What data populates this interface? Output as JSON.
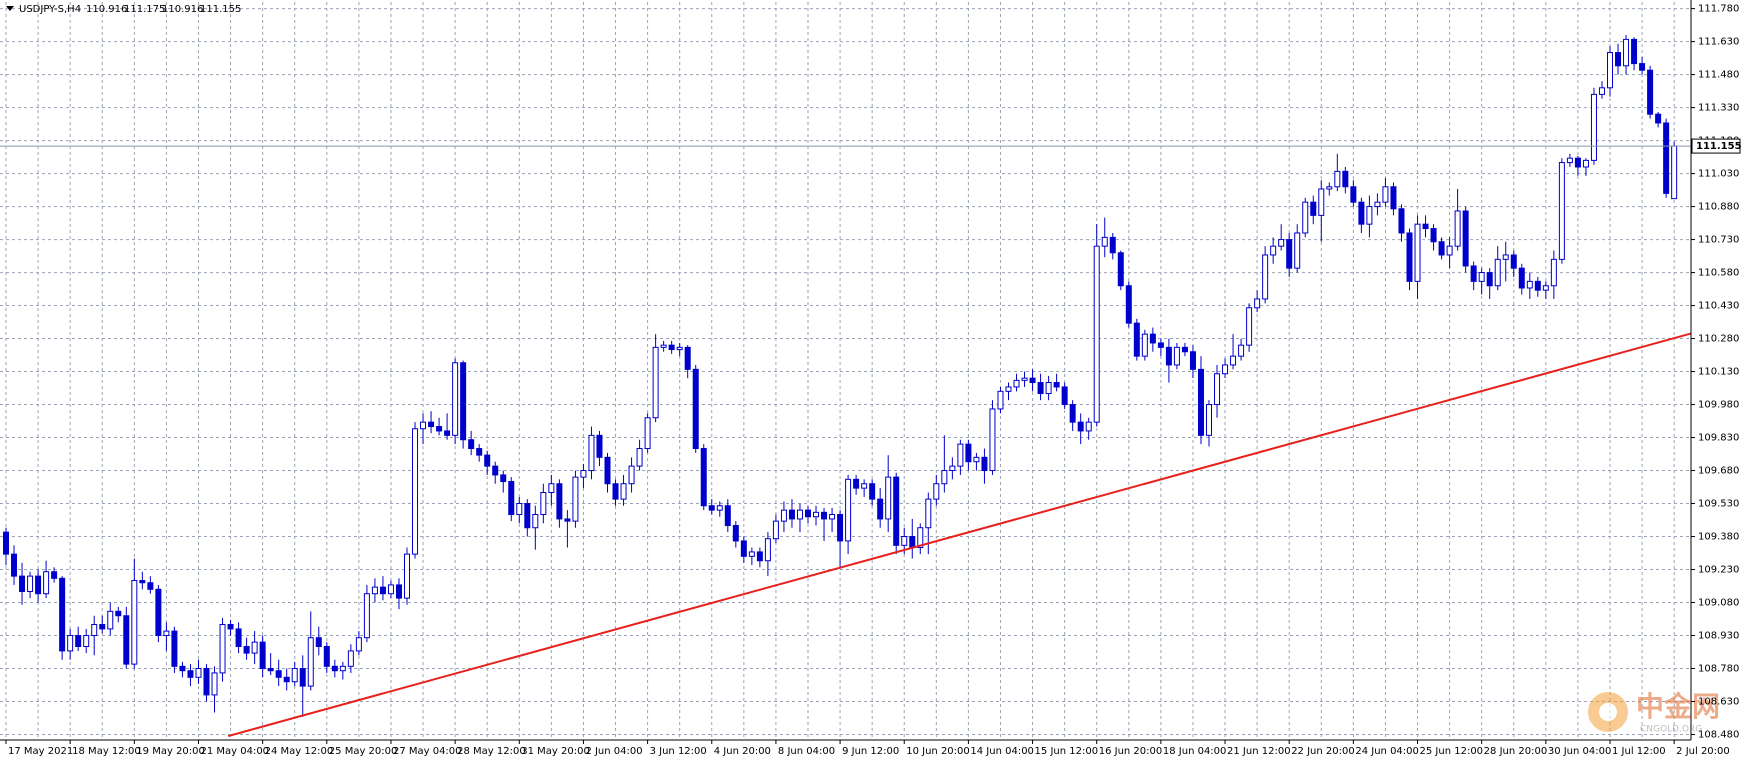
{
  "chart_data": {
    "type": "candlestick",
    "symbol": "USDJPY-S,H4",
    "x": [
      "17 May 2021",
      null,
      null,
      null,
      null,
      null,
      null,
      null,
      "18 May 12:00",
      null,
      null,
      null,
      null,
      null,
      null,
      null,
      "19 May 20:00",
      null,
      null,
      null,
      null,
      null,
      null,
      null,
      "21 May 04:00",
      null,
      null,
      null,
      null,
      null,
      null,
      null,
      "24 May 12:00",
      null,
      null,
      null,
      null,
      null,
      null,
      null,
      "25 May 20:00",
      null,
      null,
      null,
      null,
      null,
      null,
      null,
      "27 May 04:00",
      null,
      null,
      null,
      null,
      null,
      null,
      null,
      "28 May 12:00",
      null,
      null,
      null,
      null,
      null,
      null,
      null,
      "31 May 20:00",
      null,
      null,
      null,
      null,
      null,
      null,
      null,
      "2 Jun 04:00",
      null,
      null,
      null,
      null,
      null,
      null,
      null,
      "3 Jun 12:00",
      null,
      null,
      null,
      null,
      null,
      null,
      null,
      "4 Jun 20:00",
      null,
      null,
      null,
      null,
      null,
      null,
      null,
      "8 Jun 04:00",
      null,
      null,
      null,
      null,
      null,
      null,
      null,
      "9 Jun 12:00",
      null,
      null,
      null,
      null,
      null,
      null,
      null,
      "10 Jun 20:00",
      null,
      null,
      null,
      null,
      null,
      null,
      null,
      "14 Jun 04:00",
      null,
      null,
      null,
      null,
      null,
      null,
      null,
      "15 Jun 12:00",
      null,
      null,
      null,
      null,
      null,
      null,
      null,
      "16 Jun 20:00",
      null,
      null,
      null,
      null,
      null,
      null,
      null,
      "18 Jun 04:00",
      null,
      null,
      null,
      null,
      null,
      null,
      null,
      "21 Jun 12:00",
      null,
      null,
      null,
      null,
      null,
      null,
      null,
      "22 Jun 20:00",
      null,
      null,
      null,
      null,
      null,
      null,
      null,
      "24 Jun 04:00",
      null,
      null,
      null,
      null,
      null,
      null,
      null,
      "25 Jun 12:00",
      null,
      null,
      null,
      null,
      null,
      null,
      null,
      "28 Jun 20:00",
      null,
      null,
      null,
      null,
      null,
      null,
      null,
      "30 Jun 04:00",
      null,
      null,
      null,
      null,
      null,
      null,
      null,
      "1 Jul 12:00",
      null,
      null,
      null,
      null,
      null,
      null,
      null,
      "2 Jul 20:00"
    ],
    "open": [
      109.4,
      109.3,
      109.2,
      109.13,
      109.2,
      109.12,
      109.22,
      109.19,
      108.86,
      108.93,
      108.88,
      108.93,
      108.98,
      108.96,
      109.04,
      109.02,
      108.8,
      109.18,
      109.17,
      109.14,
      108.93,
      108.95,
      108.79,
      108.77,
      108.74,
      108.78,
      108.66,
      108.76,
      108.98,
      108.96,
      108.88,
      108.85,
      108.9,
      108.78,
      108.77,
      108.74,
      108.72,
      108.78,
      108.7,
      108.92,
      108.88,
      108.79,
      108.77,
      108.79,
      108.86,
      108.92,
      109.12,
      109.15,
      109.12,
      109.16,
      109.1,
      109.3,
      109.87,
      109.9,
      109.88,
      109.86,
      109.84,
      110.17,
      109.82,
      109.78,
      109.75,
      109.7,
      109.66,
      109.63,
      109.48,
      109.53,
      109.42,
      109.48,
      109.58,
      109.62,
      109.46,
      109.45,
      109.65,
      109.68,
      109.84,
      109.74,
      109.62,
      109.55,
      109.62,
      109.7,
      109.78,
      109.92,
      110.24,
      110.25,
      110.23,
      110.24,
      110.14,
      109.78,
      109.52,
      109.5,
      109.52,
      109.43,
      109.36,
      109.29,
      109.31,
      109.27,
      109.37,
      109.45,
      109.5,
      109.46,
      109.5,
      109.47,
      109.49,
      109.46,
      109.48,
      109.36,
      109.64,
      109.6,
      109.62,
      109.55,
      109.46,
      109.65,
      109.34,
      109.38,
      109.33,
      109.42,
      109.55,
      109.62,
      109.68,
      109.7,
      109.8,
      109.72,
      109.74,
      109.68,
      109.96,
      110.04,
      110.06,
      110.09,
      110.1,
      110.08,
      110.03,
      110.08,
      110.06,
      109.98,
      109.9,
      109.86,
      109.9,
      110.7,
      110.74,
      110.67,
      110.52,
      110.35,
      110.2,
      110.3,
      110.26,
      110.24,
      110.16,
      110.24,
      110.22,
      110.14,
      109.84,
      109.98,
      110.12,
      110.16,
      110.2,
      110.25,
      110.42,
      110.46,
      110.66,
      110.7,
      110.73,
      110.6,
      110.76,
      110.9,
      110.84,
      110.96,
      110.97,
      111.04,
      110.97,
      110.9,
      110.8,
      110.88,
      110.9,
      110.97,
      110.87,
      110.76,
      110.54,
      110.8,
      110.78,
      110.72,
      110.66,
      110.7,
      110.86,
      110.61,
      110.54,
      110.58,
      110.52,
      110.64,
      110.66,
      110.6,
      110.51,
      110.54,
      110.5,
      110.52,
      110.64,
      111.08,
      111.1,
      111.06,
      111.09,
      111.39,
      111.42,
      111.58,
      111.52,
      111.64,
      111.53,
      111.5,
      111.3,
      111.26,
      110.916
    ],
    "high": [
      109.42,
      109.34,
      109.26,
      109.22,
      109.23,
      109.27,
      109.24,
      109.2,
      108.96,
      108.97,
      108.96,
      109.02,
      109.02,
      109.08,
      109.06,
      109.06,
      109.28,
      109.22,
      109.2,
      109.16,
      108.99,
      108.97,
      108.81,
      108.8,
      108.82,
      108.8,
      108.79,
      109.01,
      109.0,
      108.99,
      108.92,
      108.95,
      108.93,
      108.85,
      108.82,
      108.78,
      108.81,
      108.84,
      109.04,
      108.97,
      108.9,
      108.82,
      108.81,
      108.89,
      108.95,
      109.16,
      109.19,
      109.2,
      109.18,
      109.19,
      109.33,
      109.9,
      109.94,
      109.95,
      109.92,
      109.94,
      110.19,
      110.18,
      109.86,
      109.8,
      109.77,
      109.72,
      109.68,
      109.65,
      109.56,
      109.55,
      109.52,
      109.62,
      109.66,
      109.64,
      109.5,
      109.68,
      109.71,
      109.88,
      109.86,
      109.76,
      109.64,
      109.66,
      109.74,
      109.82,
      109.94,
      110.3,
      110.27,
      110.27,
      110.26,
      110.25,
      110.16,
      109.8,
      109.55,
      109.54,
      109.55,
      109.45,
      109.38,
      109.33,
      109.33,
      109.4,
      109.48,
      109.54,
      109.55,
      109.53,
      109.52,
      109.52,
      109.51,
      109.51,
      109.5,
      109.66,
      109.66,
      109.64,
      109.64,
      109.6,
      109.75,
      109.67,
      109.42,
      109.46,
      109.44,
      109.58,
      109.66,
      109.84,
      109.74,
      109.82,
      109.82,
      109.76,
      109.78,
      110.0,
      110.06,
      110.08,
      110.12,
      110.13,
      110.14,
      110.12,
      110.11,
      110.12,
      110.08,
      110.0,
      109.94,
      109.92,
      110.8,
      110.83,
      110.76,
      110.68,
      110.54,
      110.37,
      110.32,
      110.33,
      110.28,
      110.28,
      110.26,
      110.26,
      110.25,
      110.2,
      110.0,
      110.16,
      110.19,
      110.3,
      110.28,
      110.44,
      110.5,
      110.7,
      110.74,
      110.8,
      110.76,
      110.8,
      110.92,
      110.93,
      111.0,
      110.99,
      111.12,
      111.06,
      111.0,
      110.92,
      110.93,
      110.94,
      111.01,
      110.99,
      110.89,
      110.78,
      110.84,
      110.84,
      110.8,
      110.74,
      110.74,
      110.96,
      110.88,
      110.63,
      110.6,
      110.6,
      110.7,
      110.72,
      110.68,
      110.62,
      110.58,
      110.56,
      110.54,
      110.68,
      111.1,
      111.12,
      111.11,
      111.1,
      111.42,
      111.45,
      111.61,
      111.62,
      111.66,
      111.65,
      111.56,
      111.52,
      111.31,
      111.28,
      111.175
    ],
    "low": [
      109.25,
      109.16,
      109.07,
      109.1,
      109.08,
      109.1,
      109.17,
      108.82,
      108.82,
      108.86,
      108.85,
      108.84,
      108.94,
      108.93,
      108.99,
      108.78,
      108.78,
      109.14,
      109.12,
      108.9,
      108.86,
      108.76,
      108.74,
      108.7,
      108.71,
      108.63,
      108.58,
      108.72,
      108.93,
      108.85,
      108.82,
      108.8,
      108.74,
      108.75,
      108.7,
      108.68,
      108.7,
      108.56,
      108.68,
      108.84,
      108.76,
      108.74,
      108.73,
      108.76,
      108.84,
      108.9,
      109.08,
      109.09,
      109.1,
      109.05,
      109.07,
      109.28,
      109.8,
      109.85,
      109.84,
      109.82,
      109.8,
      109.78,
      109.75,
      109.72,
      109.66,
      109.62,
      109.58,
      109.45,
      109.44,
      109.38,
      109.32,
      109.44,
      109.52,
      109.42,
      109.33,
      109.42,
      109.6,
      109.64,
      109.7,
      109.58,
      109.52,
      109.52,
      109.58,
      109.68,
      109.76,
      109.9,
      110.22,
      110.21,
      110.2,
      110.1,
      109.76,
      109.5,
      109.48,
      109.47,
      109.4,
      109.33,
      109.26,
      109.25,
      109.24,
      109.2,
      109.35,
      109.4,
      109.42,
      109.4,
      109.44,
      109.43,
      109.36,
      109.4,
      109.24,
      109.3,
      109.57,
      109.56,
      109.52,
      109.42,
      109.4,
      109.3,
      109.3,
      109.28,
      109.3,
      109.3,
      109.52,
      109.58,
      109.64,
      109.66,
      109.68,
      109.68,
      109.62,
      109.66,
      109.94,
      110.0,
      110.04,
      110.06,
      110.04,
      110.0,
      110.0,
      110.04,
      109.96,
      109.86,
      109.8,
      109.82,
      109.88,
      110.65,
      110.64,
      110.5,
      110.33,
      110.18,
      110.18,
      110.22,
      110.2,
      110.08,
      110.14,
      110.2,
      110.1,
      109.8,
      109.79,
      109.92,
      110.1,
      110.14,
      110.18,
      110.22,
      110.4,
      110.44,
      110.62,
      110.68,
      110.56,
      110.58,
      110.74,
      110.8,
      110.72,
      110.93,
      110.95,
      110.94,
      110.88,
      110.76,
      110.74,
      110.84,
      110.88,
      110.84,
      110.72,
      110.5,
      110.46,
      110.74,
      110.68,
      110.64,
      110.6,
      110.68,
      110.58,
      110.5,
      110.48,
      110.46,
      110.5,
      110.54,
      110.56,
      110.48,
      110.46,
      110.47,
      110.46,
      110.46,
      110.62,
      111.06,
      111.02,
      111.02,
      111.07,
      111.37,
      111.38,
      111.48,
      111.48,
      111.5,
      111.48,
      111.28,
      111.24,
      110.92,
      110.916
    ],
    "close": [
      109.3,
      109.2,
      109.13,
      109.2,
      109.12,
      109.22,
      109.19,
      108.86,
      108.93,
      108.88,
      108.93,
      108.98,
      108.96,
      109.04,
      109.02,
      108.8,
      109.18,
      109.17,
      109.14,
      108.93,
      108.95,
      108.79,
      108.77,
      108.74,
      108.78,
      108.66,
      108.76,
      108.98,
      108.96,
      108.88,
      108.85,
      108.9,
      108.78,
      108.77,
      108.74,
      108.72,
      108.78,
      108.7,
      108.92,
      108.88,
      108.79,
      108.77,
      108.79,
      108.86,
      108.92,
      109.12,
      109.15,
      109.12,
      109.16,
      109.1,
      109.3,
      109.87,
      109.9,
      109.88,
      109.86,
      109.84,
      110.17,
      109.82,
      109.78,
      109.75,
      109.7,
      109.66,
      109.63,
      109.48,
      109.53,
      109.42,
      109.48,
      109.58,
      109.62,
      109.46,
      109.45,
      109.65,
      109.68,
      109.84,
      109.74,
      109.62,
      109.55,
      109.62,
      109.7,
      109.78,
      109.92,
      110.24,
      110.25,
      110.23,
      110.24,
      110.14,
      109.78,
      109.52,
      109.5,
      109.52,
      109.43,
      109.36,
      109.29,
      109.31,
      109.27,
      109.37,
      109.45,
      109.5,
      109.46,
      109.5,
      109.47,
      109.49,
      109.46,
      109.48,
      109.36,
      109.64,
      109.6,
      109.62,
      109.55,
      109.46,
      109.65,
      109.34,
      109.38,
      109.33,
      109.42,
      109.55,
      109.62,
      109.68,
      109.7,
      109.8,
      109.72,
      109.74,
      109.68,
      109.96,
      110.04,
      110.06,
      110.09,
      110.1,
      110.08,
      110.03,
      110.08,
      110.06,
      109.98,
      109.9,
      109.86,
      109.9,
      110.7,
      110.74,
      110.67,
      110.52,
      110.35,
      110.2,
      110.3,
      110.26,
      110.24,
      110.16,
      110.24,
      110.22,
      110.14,
      109.84,
      109.98,
      110.12,
      110.16,
      110.2,
      110.25,
      110.42,
      110.46,
      110.66,
      110.7,
      110.73,
      110.6,
      110.76,
      110.9,
      110.84,
      110.96,
      110.97,
      111.04,
      110.97,
      110.9,
      110.8,
      110.88,
      110.9,
      110.97,
      110.87,
      110.76,
      110.54,
      110.8,
      110.78,
      110.72,
      110.66,
      110.7,
      110.86,
      110.61,
      110.54,
      110.58,
      110.52,
      110.64,
      110.66,
      110.6,
      110.51,
      110.54,
      110.5,
      110.52,
      110.64,
      111.08,
      111.1,
      111.06,
      111.09,
      111.39,
      111.42,
      111.58,
      111.52,
      111.64,
      111.53,
      111.5,
      111.3,
      111.26,
      110.94,
      111.155
    ],
    "color": "#0000cc",
    "ylim": [
      108.455,
      111.81
    ],
    "yticks": [
      {
        "value": 111.78,
        "label": "111.780"
      },
      {
        "value": 111.63,
        "label": "111.630"
      },
      {
        "value": 111.48,
        "label": "111.480"
      },
      {
        "value": 111.33,
        "label": "111.330"
      },
      {
        "value": 111.18,
        "label": "111.180"
      },
      {
        "value": 111.03,
        "label": "111.030"
      },
      {
        "value": 110.88,
        "label": "110.880"
      },
      {
        "value": 110.73,
        "label": "110.730"
      },
      {
        "value": 110.58,
        "label": "110.580"
      },
      {
        "value": 110.43,
        "label": "110.430"
      },
      {
        "value": 110.28,
        "label": "110.280"
      },
      {
        "value": 110.13,
        "label": "110.130"
      },
      {
        "value": 109.98,
        "label": "109.980"
      },
      {
        "value": 109.83,
        "label": "109.830"
      },
      {
        "value": 109.68,
        "label": "109.680"
      },
      {
        "value": 109.53,
        "label": "109.530"
      },
      {
        "value": 109.38,
        "label": "109.380"
      },
      {
        "value": 109.23,
        "label": "109.230"
      },
      {
        "value": 109.08,
        "label": "109.080"
      },
      {
        "value": 108.93,
        "label": "108.930"
      },
      {
        "value": 108.78,
        "label": "108.780"
      },
      {
        "value": 108.63,
        "label": "108.630"
      },
      {
        "value": 108.48,
        "label": "108.480"
      }
    ],
    "grid": true,
    "trendline": {
      "start": [
        27.7,
        108.473
      ],
      "end": [
        210.3,
        110.305
      ],
      "color": "#e8201c"
    },
    "watermark": "中金网",
    "watermark_sub": "CNGOLD.ORG"
  }
}
